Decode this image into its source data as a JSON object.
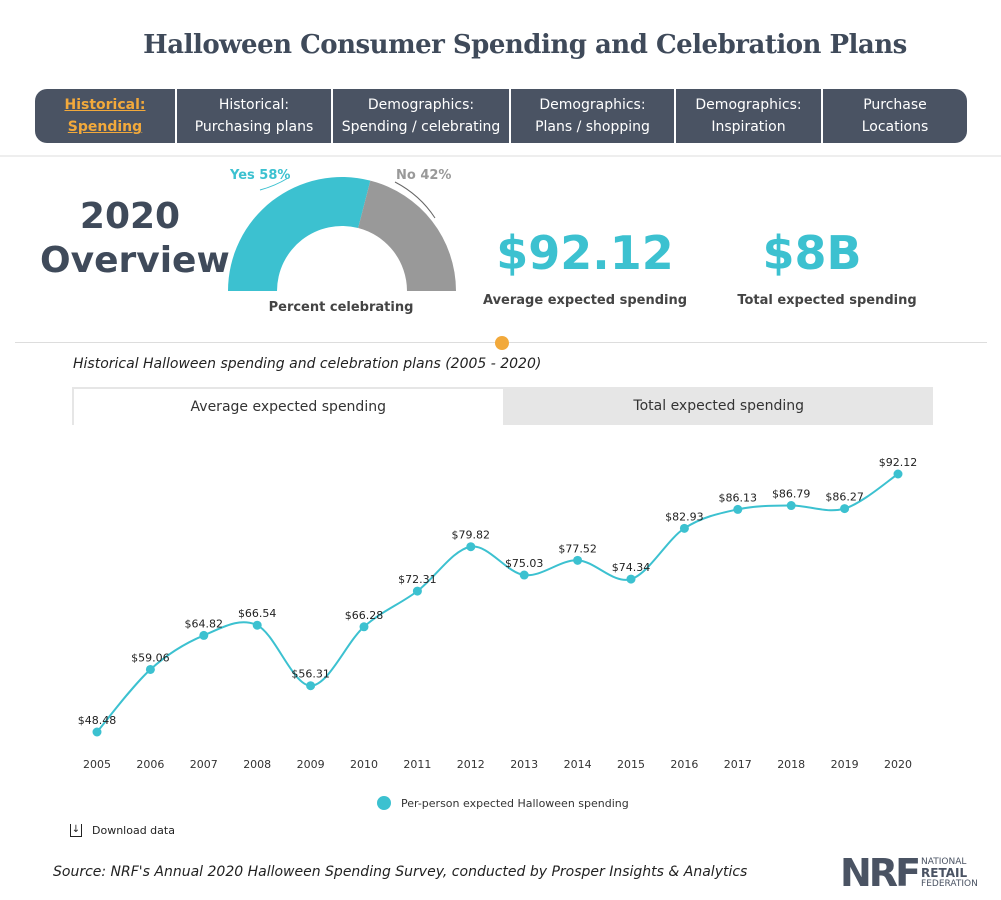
{
  "title": "Halloween Consumer Spending and Celebration Plans",
  "nav": [
    {
      "label": "Historical:\nSpending",
      "active": true
    },
    {
      "label": "Historical:\nPurchasing plans"
    },
    {
      "label": "Demographics:\nSpending / celebrating"
    },
    {
      "label": "Demographics:\nPlans / shopping"
    },
    {
      "label": "Demographics:\nInspiration"
    },
    {
      "label": "Purchase\nLocations"
    }
  ],
  "overview": {
    "heading": "2020\nOverview",
    "gauge": {
      "yes_label": "Yes 58%",
      "no_label": "No 42%",
      "yes_pct": 58,
      "caption": "Percent celebrating",
      "yes_color": "#3cc1d0",
      "no_color": "#999999"
    },
    "avg_value": "$92.12",
    "avg_caption": "Average expected spending",
    "total_value": "$8B",
    "total_caption": "Total expected spending"
  },
  "chart_subtitle": "Historical Halloween spending and celebration plans (2005 - 2020)",
  "chart_tabs": [
    {
      "label": "Average expected spending",
      "active": true
    },
    {
      "label": "Total expected spending"
    }
  ],
  "chart_data": {
    "type": "line",
    "x": [
      "2005",
      "2006",
      "2007",
      "2008",
      "2009",
      "2010",
      "2011",
      "2012",
      "2013",
      "2014",
      "2015",
      "2016",
      "2017",
      "2018",
      "2019",
      "2020"
    ],
    "series": [
      {
        "name": "Per-person expected Halloween spending",
        "values": [
          48.48,
          59.06,
          64.82,
          66.54,
          56.31,
          66.28,
          72.31,
          79.82,
          75.03,
          77.52,
          74.34,
          82.93,
          86.13,
          86.79,
          86.27,
          92.12
        ],
        "labels": [
          "$48.48",
          "$59.06",
          "$64.82",
          "$66.54",
          "$56.31",
          "$66.28",
          "$72.31",
          "$79.82",
          "$75.03",
          "$77.52",
          "$74.34",
          "$82.93",
          "$86.13",
          "$86.79",
          "$86.27",
          "$92.12"
        ],
        "color": "#3cc1d0"
      }
    ],
    "grid": false,
    "legend": "bottom"
  },
  "download_label": "Download data",
  "source": "Source: NRF's Annual 2020 Halloween Spending Survey, conducted by Prosper Insights & Analytics",
  "logo": {
    "mark": "NRF",
    "line1": "NATIONAL",
    "line2": "RETAIL",
    "line3": "FEDERATION"
  }
}
